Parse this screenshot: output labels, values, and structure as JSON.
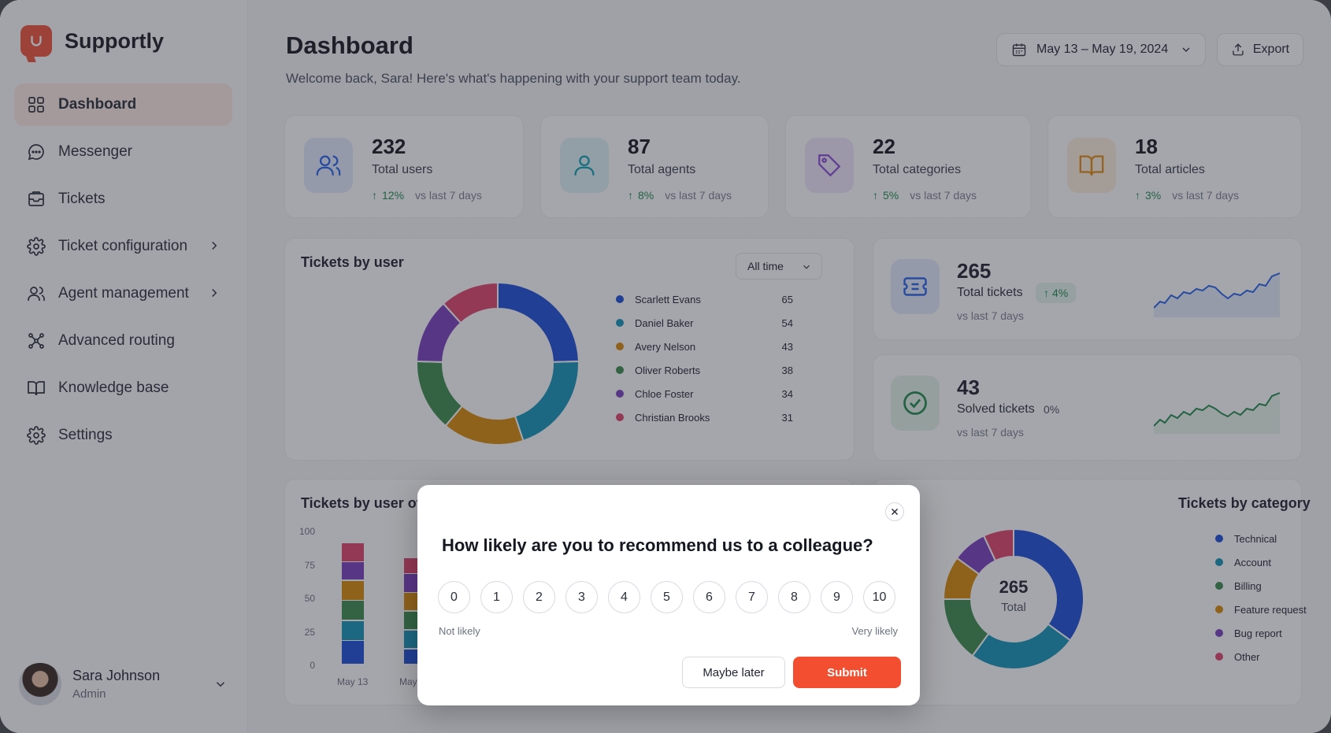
{
  "app": {
    "name": "Supportly"
  },
  "sidebar": {
    "items": [
      {
        "label": "Dashboard",
        "icon": "grid-icon",
        "active": true
      },
      {
        "label": "Messenger",
        "icon": "chat-icon"
      },
      {
        "label": "Tickets",
        "icon": "inbox-icon"
      },
      {
        "label": "Ticket configuration",
        "icon": "gear-icon",
        "chevron": true
      },
      {
        "label": "Agent management",
        "icon": "users-icon",
        "chevron": true
      },
      {
        "label": "Advanced routing",
        "icon": "routing-icon"
      },
      {
        "label": "Knowledge base",
        "icon": "book-icon"
      },
      {
        "label": "Settings",
        "icon": "gear-icon"
      }
    ]
  },
  "user": {
    "name": "Sara Johnson",
    "role": "Admin"
  },
  "header": {
    "title": "Dashboard",
    "subtitle": "Welcome back, Sara! Here's what's happening with your support team today.",
    "date_range": "May 13 – May 19, 2024",
    "export_label": "Export"
  },
  "stats": [
    {
      "value": "232",
      "label": "Total users",
      "change": "12%",
      "vs": "vs last 7 days",
      "color": "#2563eb",
      "icon": "users-icon"
    },
    {
      "value": "87",
      "label": "Total agents",
      "change": "8%",
      "vs": "vs last 7 days",
      "color": "#0e9fb6",
      "icon": "user-icon"
    },
    {
      "value": "22",
      "label": "Total categories",
      "change": "5%",
      "vs": "vs last 7 days",
      "color": "#8b4dd6",
      "icon": "tag-icon"
    },
    {
      "value": "18",
      "label": "Total articles",
      "change": "3%",
      "vs": "vs last 7 days",
      "color": "#e38a12",
      "icon": "book-icon"
    }
  ],
  "tickets_by_user": {
    "title": "Tickets by user",
    "filter": "All time",
    "chart_data": {
      "type": "pie",
      "labels": [
        "Scarlett Evans",
        "Daniel Baker",
        "Avery Nelson",
        "Oliver Roberts",
        "Chloe Foster",
        "Christian Brooks"
      ],
      "values": [
        65,
        54,
        43,
        38,
        34,
        31
      ],
      "colors": [
        "#1d4fd8",
        "#1495b8",
        "#d98a0a",
        "#3c8c4c",
        "#7b3fbf",
        "#e0436b"
      ]
    }
  },
  "ticket_summary": [
    {
      "value": "265",
      "label": "Total tickets",
      "change": "4%",
      "vs": "vs last 7 days",
      "color": "#2563eb",
      "icon": "ticket-icon"
    },
    {
      "value": "43",
      "label": "Solved tickets",
      "change": "0%",
      "vs": "vs last 7 days",
      "color": "#1f8a4c",
      "icon": "check-icon"
    }
  ],
  "tickets_over_time": {
    "title": "Tickets by user ov",
    "chart_data": {
      "type": "bar",
      "stacked": true,
      "categories": [
        "May 13",
        "May"
      ],
      "ylim": [
        0,
        100
      ],
      "yticks": [
        0,
        25,
        50,
        75,
        100
      ],
      "series": [
        {
          "values": [
            18,
            12
          ],
          "color": "#1d4fd8"
        },
        {
          "values": [
            15,
            14
          ],
          "color": "#1495b8"
        },
        {
          "values": [
            15,
            14
          ],
          "color": "#3c8c4c"
        },
        {
          "values": [
            15,
            14
          ],
          "color": "#d98a0a"
        },
        {
          "values": [
            14,
            14
          ],
          "color": "#7b3fbf"
        },
        {
          "values": [
            14,
            12
          ],
          "color": "#e0436b"
        }
      ]
    }
  },
  "tickets_by_category": {
    "title": "Tickets by category",
    "center_value": "265",
    "center_label": "Total",
    "chart_data": {
      "type": "pie",
      "labels": [
        "Technical",
        "Account",
        "Billing",
        "Feature request",
        "Bug report",
        "Other"
      ],
      "values": [
        35,
        25,
        15,
        10,
        8,
        7
      ],
      "display": [
        "35%",
        "25%",
        "15%",
        "10%",
        "8%",
        "7%"
      ],
      "colors": [
        "#1d4fd8",
        "#1495b8",
        "#3c8c4c",
        "#d98a0a",
        "#7b3fbf",
        "#e0436b"
      ]
    }
  },
  "survey": {
    "question": "How likely are you to recommend us to a colleague?",
    "options": [
      "0",
      "1",
      "2",
      "3",
      "4",
      "5",
      "6",
      "7",
      "8",
      "9",
      "10"
    ],
    "low_label": "Not likely",
    "high_label": "Very likely",
    "later_label": "Maybe later",
    "submit_label": "Submit"
  }
}
